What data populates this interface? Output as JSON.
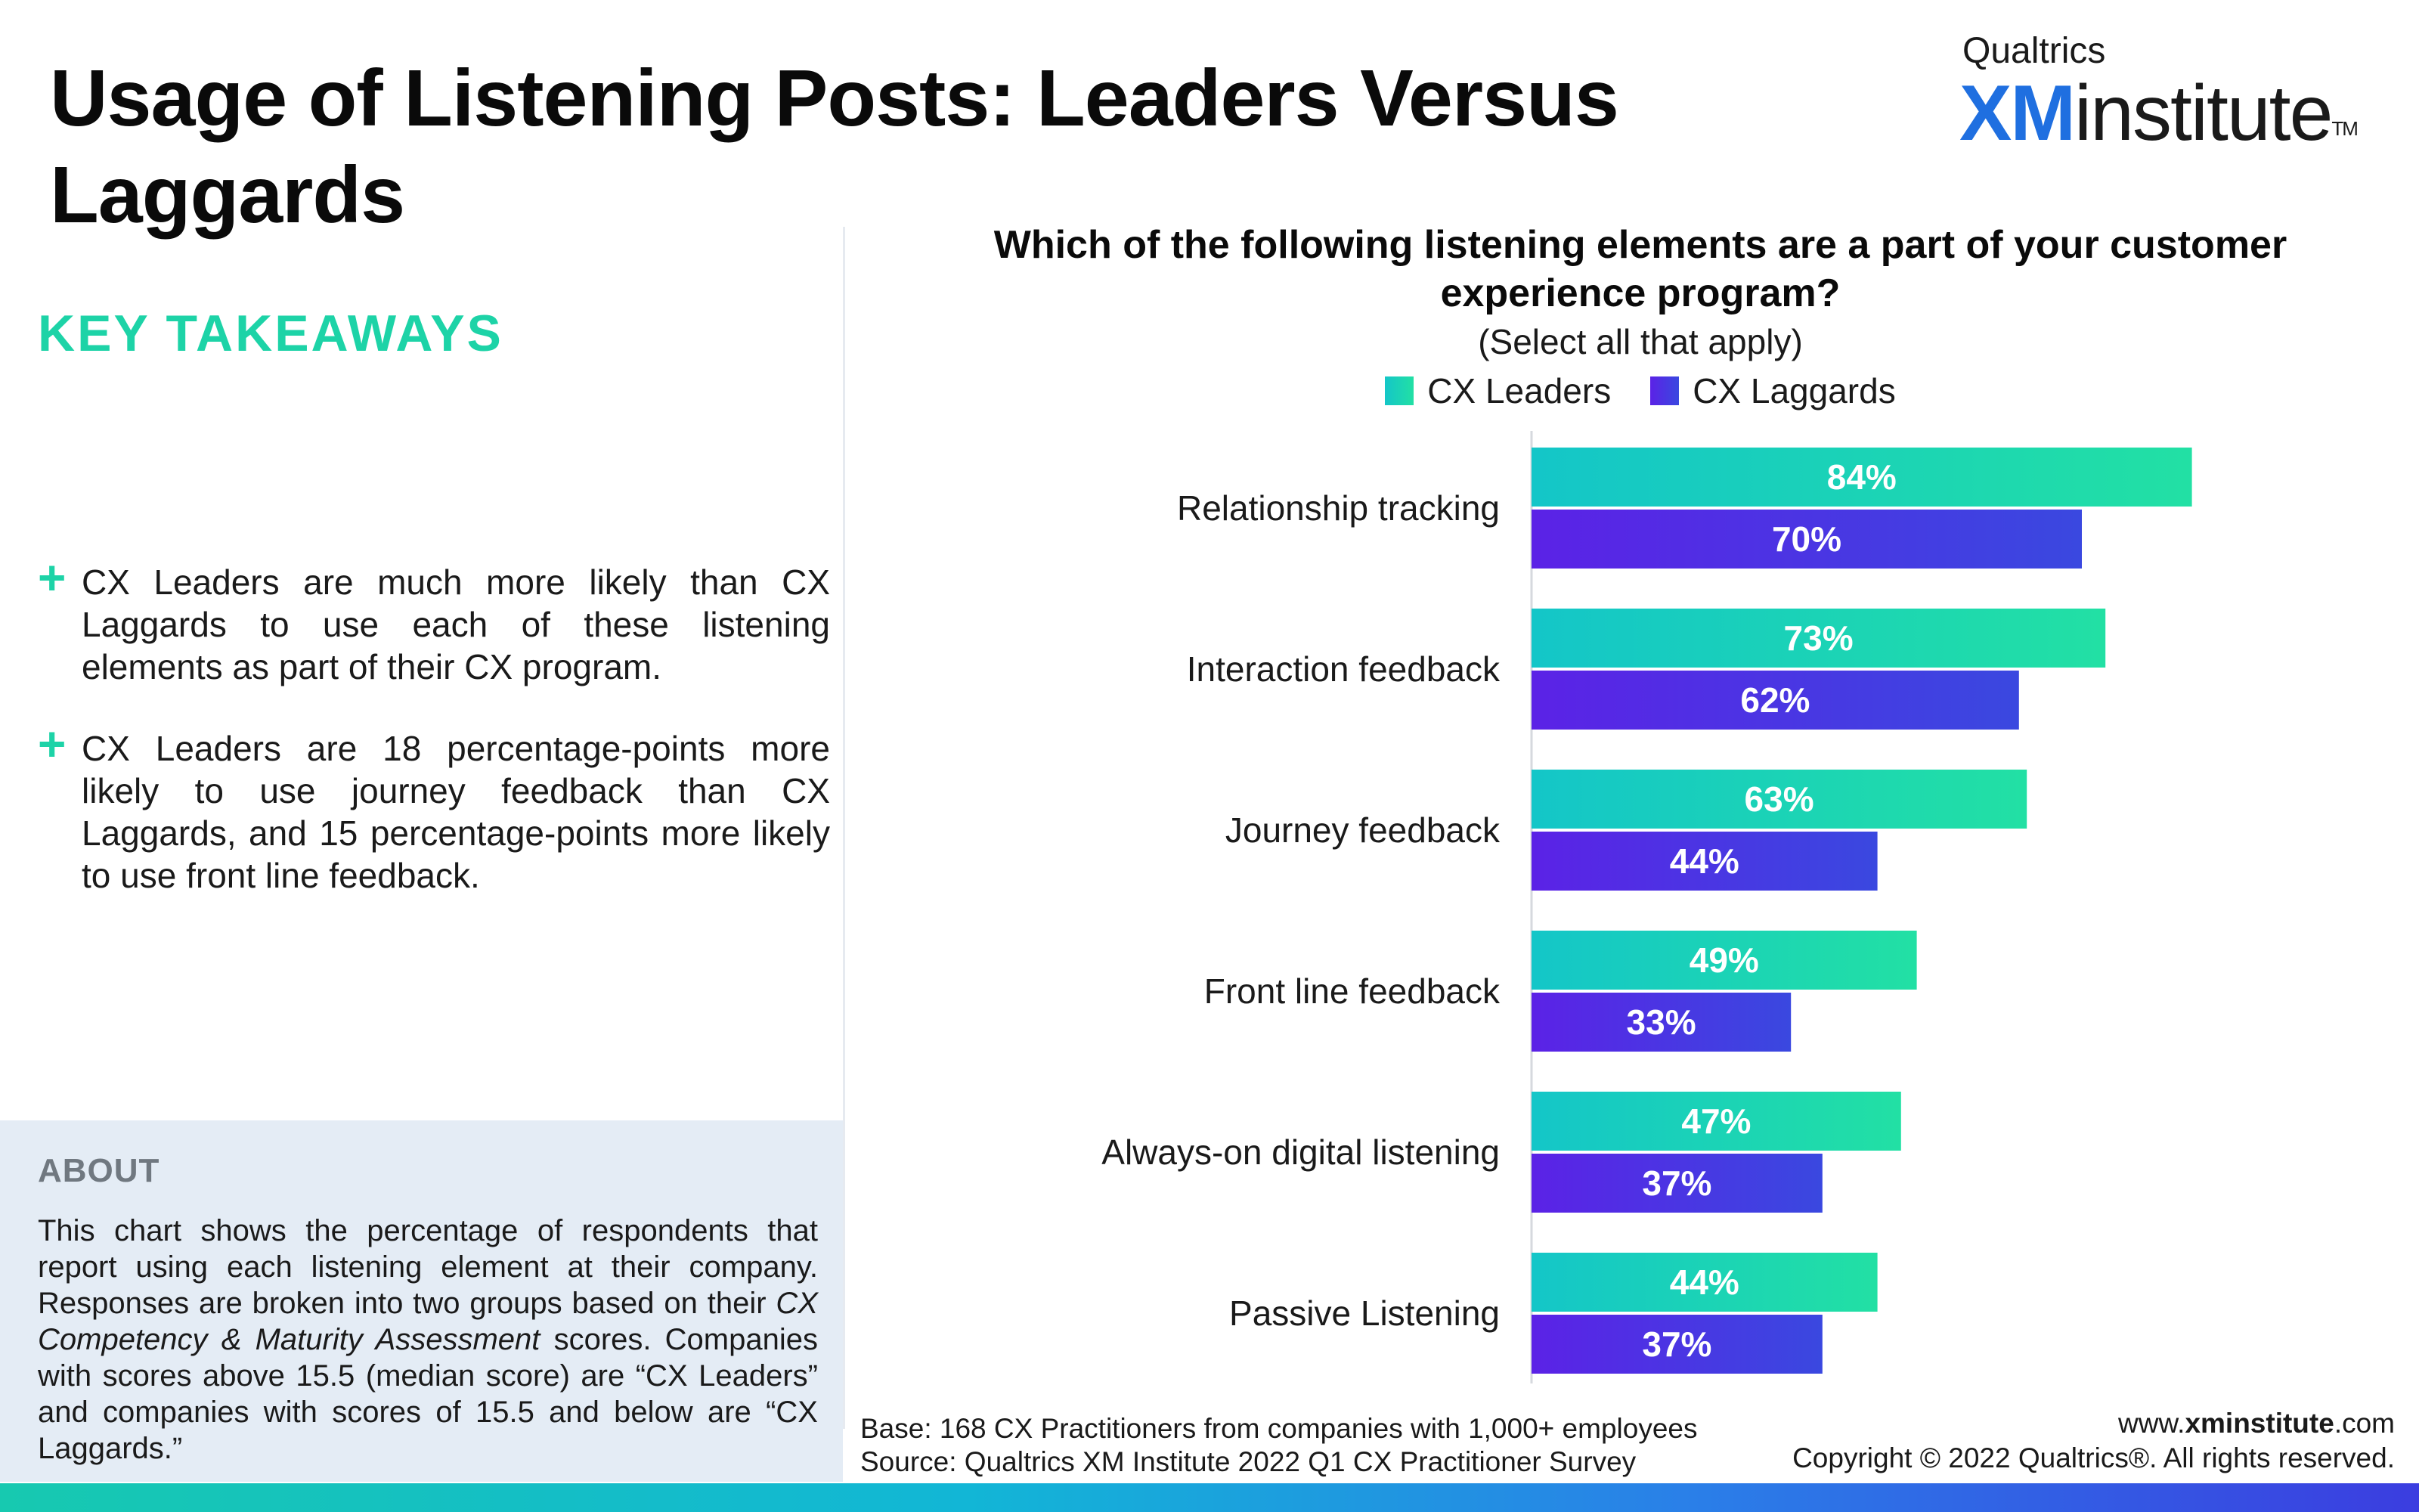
{
  "header": {
    "title": "Usage of Listening Posts: Leaders Versus Laggards",
    "logo_top": "Qualtrics",
    "logo_xm": "XM",
    "logo_institute": "institute",
    "logo_tm": "TM"
  },
  "takeaways": {
    "heading": "KEY TAKEAWAYS",
    "items": [
      "CX Leaders are much more likely than CX Laggards to use each of these listening elements as part of their CX program.",
      "CX Leaders are 18 percentage-points more likely to use journey feedback than CX Laggards, and 15 percentage-points more likely to use front line feedback."
    ]
  },
  "about": {
    "heading": "ABOUT",
    "text_1": "This chart shows the percentage of respondents that report using each listening element at their company. Responses are broken into two groups based on their ",
    "text_italic": "CX Competency & Maturity Assessment",
    "text_2": " scores. Companies with scores above 15.5 (median score) are “CX Leaders” and companies with scores of 15.5 and below  are “CX Laggards.”"
  },
  "chart_data": {
    "type": "bar",
    "orientation": "horizontal",
    "title": "Which of the following listening elements are a part of your customer experience program?",
    "subtitle": "(Select all that apply)",
    "categories": [
      "Relationship tracking",
      "Interaction feedback",
      "Journey feedback",
      "Front line feedback",
      "Always-on digital listening",
      "Passive Listening"
    ],
    "series": [
      {
        "name": "CX Leaders",
        "values": [
          84,
          73,
          63,
          49,
          47,
          44
        ],
        "color_start": "#14c6c8",
        "color_end": "#22e0a4"
      },
      {
        "name": "CX Laggards",
        "values": [
          70,
          62,
          44,
          33,
          37,
          37
        ],
        "color_start": "#5b22e6",
        "color_end": "#3a48e0"
      }
    ],
    "value_suffix": "%",
    "xlim": [
      0,
      100
    ],
    "legend_position": "top-center",
    "grid": false
  },
  "footer": {
    "base": "Base: 168 CX Practitioners from companies with 1,000+ employees",
    "source": "Source: Qualtrics XM Institute 2022 Q1 CX Practitioner Survey",
    "url_prefix": "www.",
    "url_bold": "xminstitute",
    "url_suffix": ".com",
    "copyright": "Copyright © 2022 Qualtrics®. All rights reserved."
  },
  "colors": {
    "accent_teal": "#1dd3a7",
    "leaders": "#1ccfbc",
    "laggards": "#4a30e4",
    "about_bg": "#e4ecf5"
  },
  "icons": [
    "plus-icon"
  ]
}
